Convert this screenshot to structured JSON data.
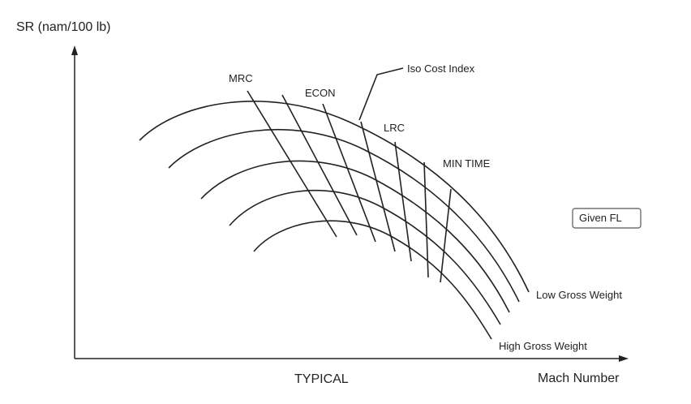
{
  "y_axis_label": "SR (nam/100 lb)",
  "x_axis_label": "Mach Number",
  "caption": "TYPICAL",
  "labels": {
    "mrc": "MRC",
    "econ": "ECON",
    "iso_cost_index": "Iso Cost Index",
    "lrc": "LRC",
    "min_time": "MIN TIME",
    "given_fl": "Given FL",
    "low_gross_weight": "Low Gross Weight",
    "high_gross_weight": "High Gross Weight"
  }
}
